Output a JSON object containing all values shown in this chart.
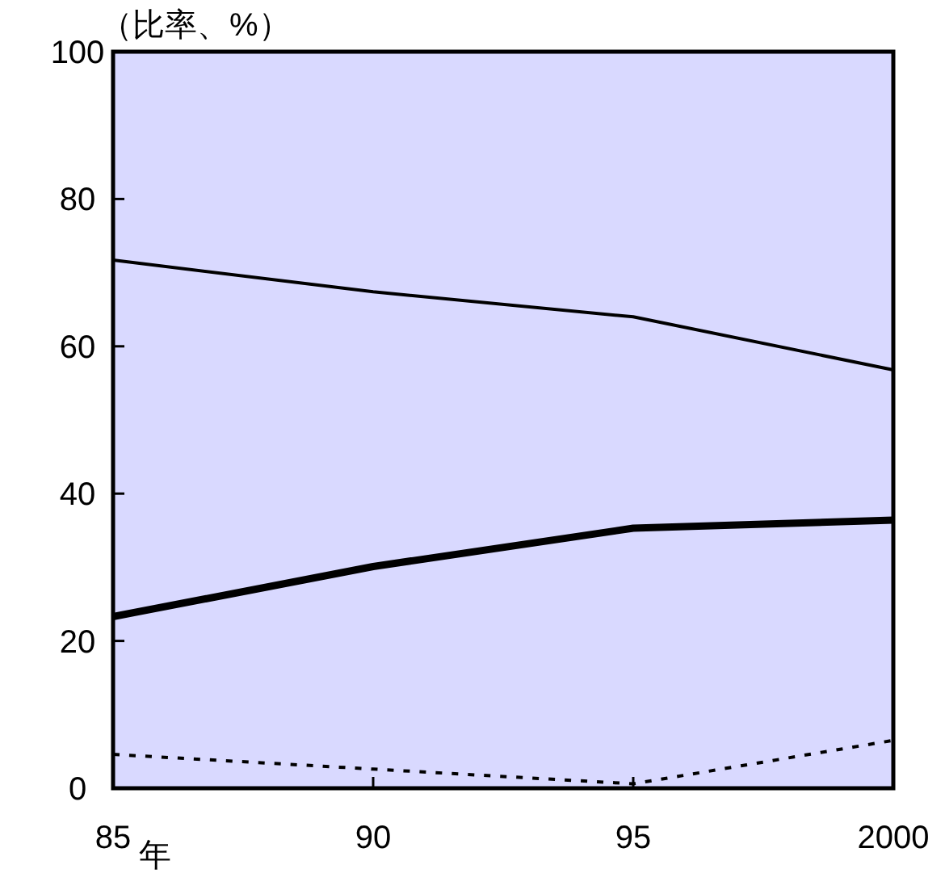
{
  "chart_data": {
    "type": "line",
    "xlabel": "年",
    "ylabel": "（比率、%）",
    "x": [
      1985,
      1990,
      1995,
      2000
    ],
    "xlim": [
      1985,
      2000
    ],
    "xticks": [
      {
        "value": 1985,
        "label": "85"
      },
      {
        "value": 1990,
        "label": "90"
      },
      {
        "value": 1995,
        "label": "95"
      },
      {
        "value": 2000,
        "label": "2000"
      }
    ],
    "ylim": [
      0,
      100
    ],
    "yticks": [
      0,
      20,
      40,
      60,
      80,
      100
    ],
    "grid": false,
    "marker": "none",
    "series": [
      {
        "color": "#000000",
        "line_style": "solid",
        "values": [
          71.7,
          67.4,
          64.0,
          56.8
        ]
      },
      {
        "color": "#000000",
        "line_style": "solid",
        "values": [
          23.3,
          30.1,
          35.3,
          36.4
        ]
      },
      {
        "color": "#000000",
        "line_style": "dotted",
        "values": [
          4.6,
          2.6,
          0.6,
          6.5
        ]
      }
    ]
  }
}
